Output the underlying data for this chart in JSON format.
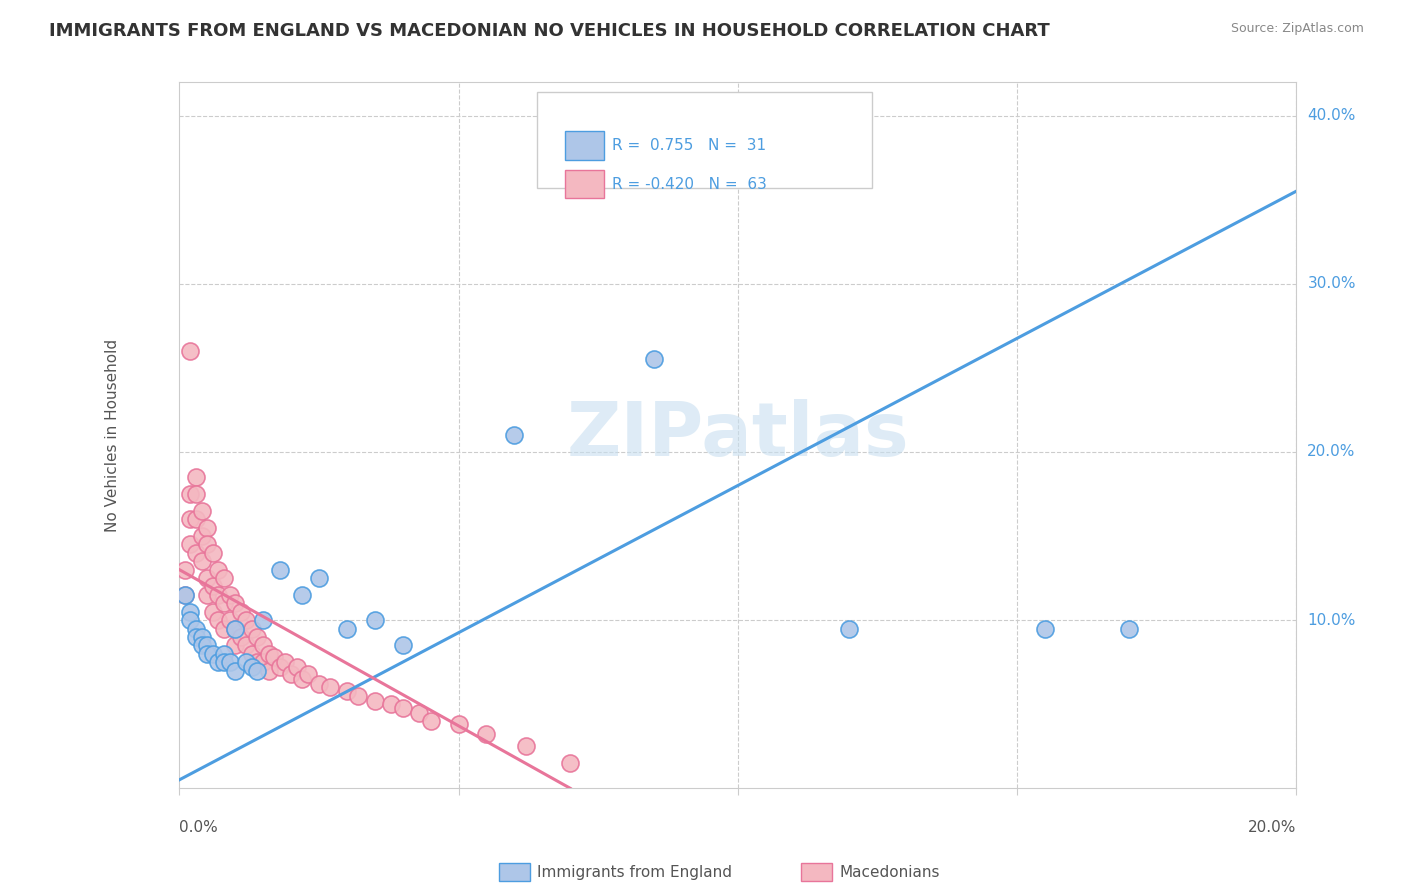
{
  "title": "IMMIGRANTS FROM ENGLAND VS MACEDONIAN NO VEHICLES IN HOUSEHOLD CORRELATION CHART",
  "source": "Source: ZipAtlas.com",
  "ylabel": "No Vehicles in Household",
  "xlim": [
    0,
    0.2
  ],
  "ylim": [
    0,
    0.42
  ],
  "watermark": "ZIPatlas",
  "blue_scatter_x": [
    0.001,
    0.002,
    0.002,
    0.003,
    0.003,
    0.004,
    0.004,
    0.005,
    0.005,
    0.006,
    0.007,
    0.008,
    0.008,
    0.009,
    0.01,
    0.01,
    0.012,
    0.013,
    0.014,
    0.015,
    0.018,
    0.022,
    0.025,
    0.03,
    0.035,
    0.04,
    0.06,
    0.085,
    0.12,
    0.155,
    0.17
  ],
  "blue_scatter_y": [
    0.115,
    0.105,
    0.1,
    0.095,
    0.09,
    0.09,
    0.085,
    0.085,
    0.08,
    0.08,
    0.075,
    0.08,
    0.075,
    0.075,
    0.07,
    0.095,
    0.075,
    0.072,
    0.07,
    0.1,
    0.13,
    0.115,
    0.125,
    0.095,
    0.1,
    0.085,
    0.21,
    0.255,
    0.095,
    0.095,
    0.095
  ],
  "pink_scatter_x": [
    0.001,
    0.001,
    0.002,
    0.002,
    0.002,
    0.003,
    0.003,
    0.003,
    0.003,
    0.004,
    0.004,
    0.004,
    0.005,
    0.005,
    0.005,
    0.005,
    0.006,
    0.006,
    0.006,
    0.007,
    0.007,
    0.007,
    0.008,
    0.008,
    0.008,
    0.009,
    0.009,
    0.01,
    0.01,
    0.01,
    0.011,
    0.011,
    0.012,
    0.012,
    0.013,
    0.013,
    0.014,
    0.014,
    0.015,
    0.015,
    0.016,
    0.016,
    0.017,
    0.018,
    0.019,
    0.02,
    0.021,
    0.022,
    0.023,
    0.025,
    0.027,
    0.03,
    0.032,
    0.035,
    0.038,
    0.04,
    0.043,
    0.045,
    0.05,
    0.055,
    0.062,
    0.07,
    0.002
  ],
  "pink_scatter_y": [
    0.13,
    0.115,
    0.175,
    0.16,
    0.145,
    0.185,
    0.175,
    0.16,
    0.14,
    0.165,
    0.15,
    0.135,
    0.155,
    0.145,
    0.125,
    0.115,
    0.14,
    0.12,
    0.105,
    0.13,
    0.115,
    0.1,
    0.125,
    0.11,
    0.095,
    0.115,
    0.1,
    0.11,
    0.095,
    0.085,
    0.105,
    0.09,
    0.1,
    0.085,
    0.095,
    0.08,
    0.09,
    0.075,
    0.085,
    0.075,
    0.08,
    0.07,
    0.078,
    0.072,
    0.075,
    0.068,
    0.072,
    0.065,
    0.068,
    0.062,
    0.06,
    0.058,
    0.055,
    0.052,
    0.05,
    0.048,
    0.045,
    0.04,
    0.038,
    0.032,
    0.025,
    0.015,
    0.26
  ],
  "blue_line_x": [
    0.0,
    0.2
  ],
  "blue_line_y": [
    0.005,
    0.355
  ],
  "pink_line_x": [
    0.0,
    0.07
  ],
  "pink_line_y": [
    0.13,
    0.0
  ],
  "blue_color": "#4d9de0",
  "pink_color": "#e8759a",
  "blue_fill": "#aec6e8",
  "pink_fill": "#f4b8c1",
  "background_color": "#ffffff",
  "grid_color": "#cccccc"
}
